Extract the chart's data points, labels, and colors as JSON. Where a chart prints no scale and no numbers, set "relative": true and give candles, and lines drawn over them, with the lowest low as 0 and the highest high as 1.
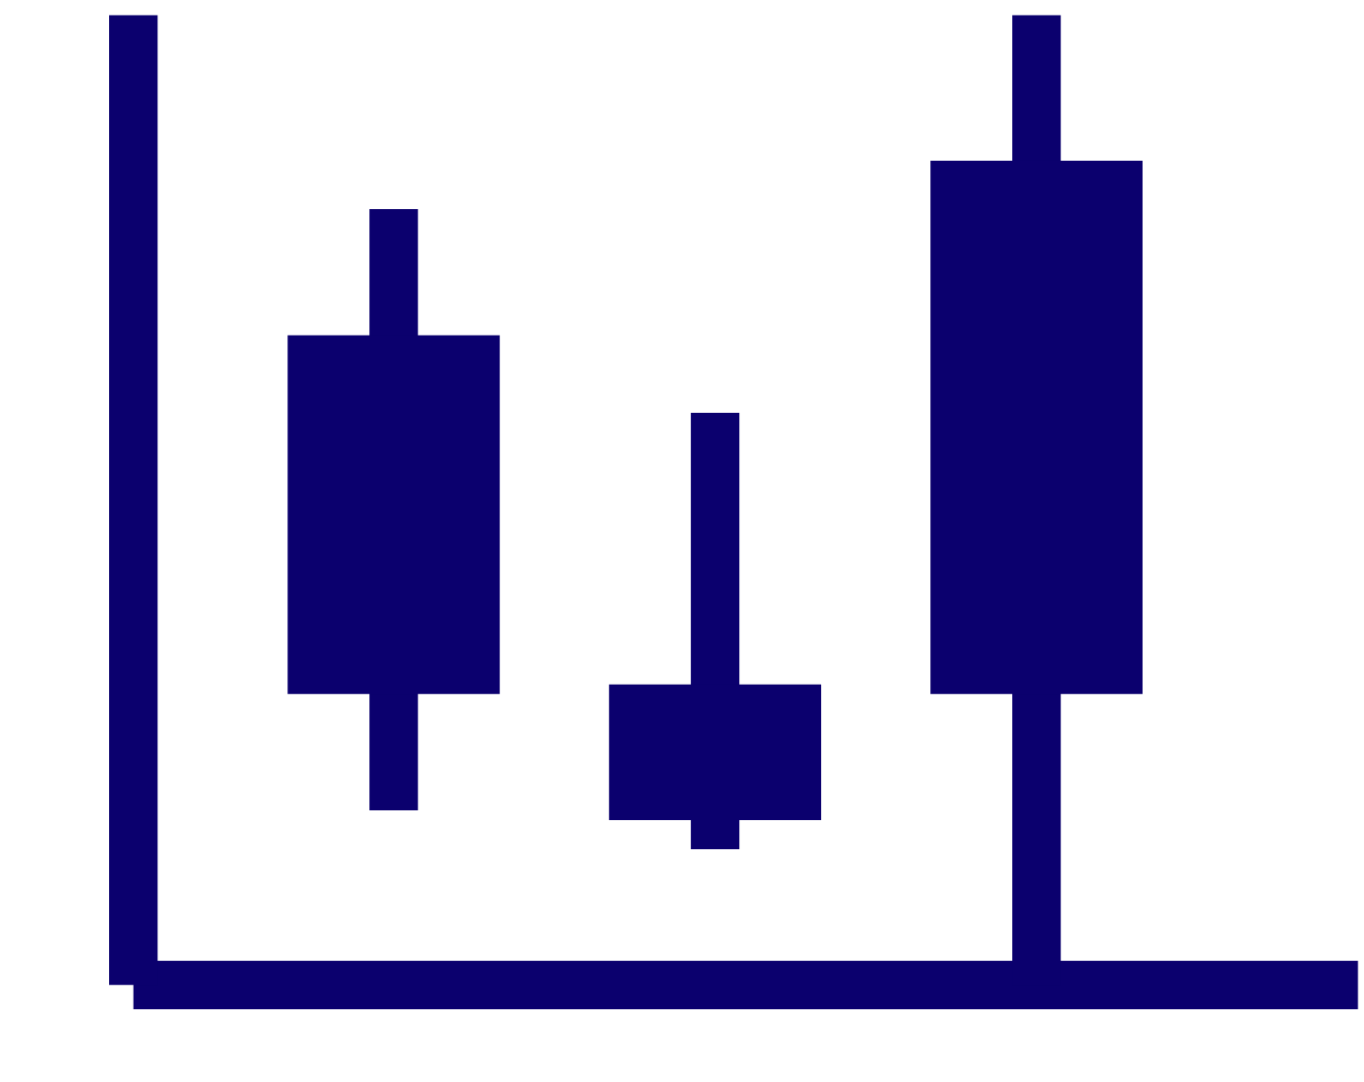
{
  "chart_data": {
    "type": "candlestick",
    "relative": true,
    "categories": [
      null,
      null,
      null
    ],
    "ohlc": [
      [
        0.3,
        0.8,
        0.18,
        0.67
      ],
      [
        0.17,
        0.59,
        0.14,
        0.31
      ],
      [
        0.3,
        1,
        0,
        0.85
      ]
    ],
    "colors": [
      "#0b006e",
      "#0b006e",
      "#0b006e"
    ]
  }
}
